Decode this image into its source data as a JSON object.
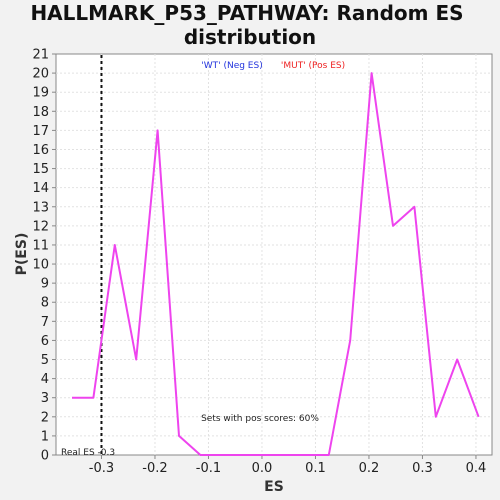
{
  "chart_data": {
    "type": "line",
    "title_line1": "HALLMARK_P53_PATHWAY: Random ES",
    "title_line2": "distribution",
    "xlabel": "ES",
    "ylabel": "P(ES)",
    "xlim": [
      -0.385,
      0.43
    ],
    "ylim": [
      0,
      21
    ],
    "x_ticks": [
      -0.3,
      -0.2,
      -0.1,
      0.0,
      0.1,
      0.2,
      0.3,
      0.4
    ],
    "x_tick_labels": [
      "-0.3",
      "-0.2",
      "-0.1",
      "0.0",
      "0.1",
      "0.2",
      "0.3",
      "0.4"
    ],
    "y_ticks": [
      0,
      1,
      2,
      3,
      4,
      5,
      6,
      7,
      8,
      9,
      10,
      11,
      12,
      13,
      14,
      15,
      16,
      17,
      18,
      19,
      20,
      21
    ],
    "grid": true,
    "series": [
      {
        "color": "#ee44ee",
        "x": [
          -0.355,
          -0.315,
          -0.275,
          -0.235,
          -0.195,
          -0.155,
          -0.115,
          -0.075,
          -0.035,
          0.005,
          0.045,
          0.085,
          0.125,
          0.165,
          0.205,
          0.245,
          0.285,
          0.325,
          0.365,
          0.405
        ],
        "y": [
          3,
          3,
          11,
          5,
          17,
          1,
          0,
          0,
          0,
          0,
          0,
          0,
          0,
          6,
          20,
          12,
          13,
          2,
          5,
          2
        ]
      }
    ],
    "real_es": {
      "value": -0.3,
      "label": "Real ES -0.3"
    },
    "legend": [
      {
        "label": "'WT' (Neg ES)",
        "color": "#2233dd"
      },
      {
        "label": "'MUT' (Pos ES)",
        "color": "#ee2222"
      }
    ],
    "legend_position": "top-center",
    "annotation": "Sets with pos scores: 60%"
  }
}
